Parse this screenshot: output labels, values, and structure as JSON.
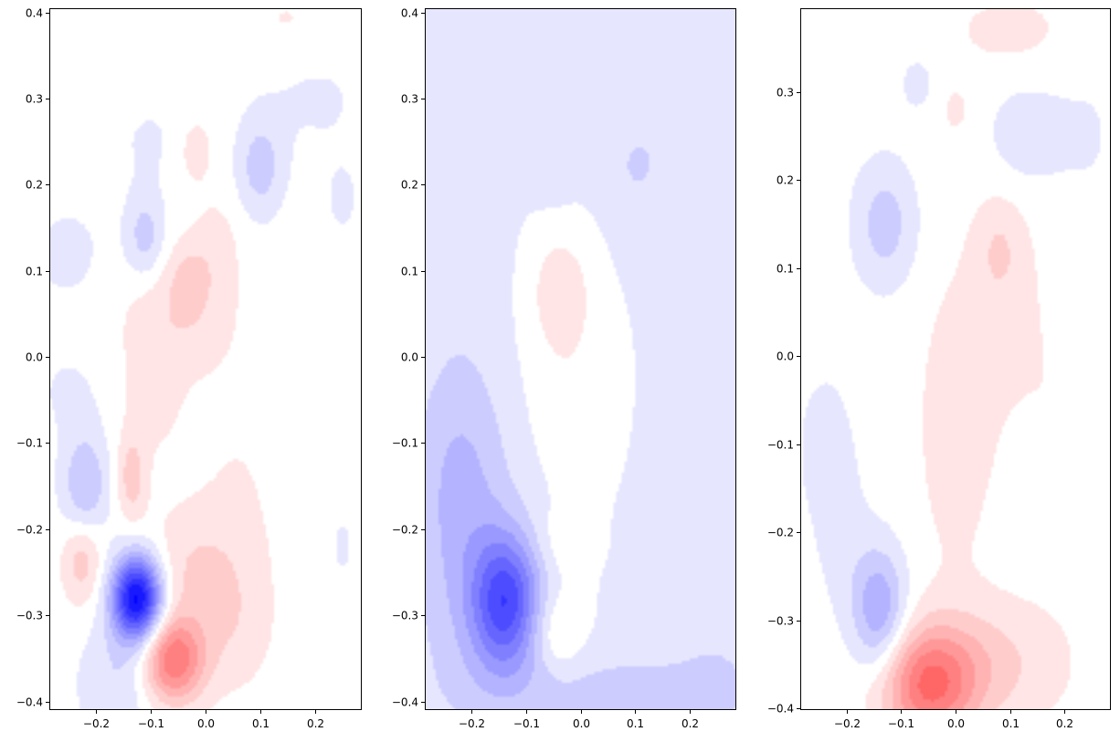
{
  "colors": {
    "positive": "#ff0000",
    "negative": "#0000ff",
    "neutral": "#ffffff",
    "axis": "#000000"
  },
  "chart_data": [
    {
      "type": "heatmap",
      "colormap": "bwr",
      "levels": 21,
      "vmin": -1.0,
      "vmax": 1.0,
      "xlim": [
        -0.285,
        0.285
      ],
      "ylim": [
        -0.41,
        0.405
      ],
      "xticks": [
        -0.2,
        -0.1,
        0.0,
        0.1,
        0.2
      ],
      "yticks": [
        -0.4,
        -0.3,
        -0.2,
        -0.1,
        0.0,
        0.1,
        0.2,
        0.3,
        0.4
      ],
      "xticklabels": [
        "−0.2",
        "−0.1",
        "0.0",
        "0.1",
        "0.2"
      ],
      "yticklabels": [
        "−0.4",
        "−0.3",
        "−0.2",
        "−0.1",
        "0.0",
        "0.1",
        "0.2",
        "0.3",
        "0.4"
      ],
      "background": 0.0,
      "blobs": [
        {
          "x": -0.125,
          "y": -0.28,
          "sx": 0.032,
          "sy": 0.035,
          "v": -1.0
        },
        {
          "x": -0.06,
          "y": -0.352,
          "sx": 0.04,
          "sy": 0.035,
          "v": 0.55
        },
        {
          "x": -0.02,
          "y": -0.25,
          "sx": 0.07,
          "sy": 0.05,
          "v": 0.15
        },
        {
          "x": 0.05,
          "y": -0.32,
          "sx": 0.05,
          "sy": 0.05,
          "v": 0.1
        },
        {
          "x": -0.225,
          "y": -0.235,
          "sx": 0.025,
          "sy": 0.035,
          "v": 0.22
        },
        {
          "x": -0.135,
          "y": -0.14,
          "sx": 0.018,
          "sy": 0.035,
          "v": 0.2
        },
        {
          "x": -0.22,
          "y": -0.15,
          "sx": 0.03,
          "sy": 0.045,
          "v": -0.25
        },
        {
          "x": -0.16,
          "y": -0.38,
          "sx": 0.05,
          "sy": 0.05,
          "v": -0.15
        },
        {
          "x": -0.05,
          "y": 0.05,
          "sx": 0.07,
          "sy": 0.05,
          "v": 0.13
        },
        {
          "x": -0.03,
          "y": 0.09,
          "sx": 0.025,
          "sy": 0.03,
          "v": 0.12
        },
        {
          "x": 0.02,
          "y": 0.13,
          "sx": 0.03,
          "sy": 0.04,
          "v": 0.08
        },
        {
          "x": -0.1,
          "y": -0.05,
          "sx": 0.04,
          "sy": 0.05,
          "v": 0.08
        },
        {
          "x": 0.06,
          "y": -0.15,
          "sx": 0.06,
          "sy": 0.09,
          "v": 0.05
        },
        {
          "x": -0.11,
          "y": 0.14,
          "sx": 0.025,
          "sy": 0.035,
          "v": -0.2
        },
        {
          "x": 0.1,
          "y": 0.22,
          "sx": 0.03,
          "sy": 0.04,
          "v": -0.2
        },
        {
          "x": -0.02,
          "y": 0.24,
          "sx": 0.025,
          "sy": 0.03,
          "v": 0.1
        },
        {
          "x": 0.15,
          "y": 0.39,
          "sx": 0.06,
          "sy": 0.03,
          "v": 0.06
        },
        {
          "x": -0.25,
          "y": 0.12,
          "sx": 0.06,
          "sy": 0.05,
          "v": -0.07
        },
        {
          "x": -0.1,
          "y": 0.25,
          "sx": 0.05,
          "sy": 0.04,
          "v": -0.06
        },
        {
          "x": 0.2,
          "y": 0.3,
          "sx": 0.08,
          "sy": 0.05,
          "v": -0.06
        },
        {
          "x": 0.25,
          "y": 0.18,
          "sx": 0.03,
          "sy": 0.04,
          "v": -0.06
        },
        {
          "x": 0.25,
          "y": -0.22,
          "sx": 0.02,
          "sy": 0.04,
          "v": -0.06
        },
        {
          "x": -0.25,
          "y": -0.04,
          "sx": 0.05,
          "sy": 0.04,
          "v": -0.06
        }
      ]
    },
    {
      "type": "heatmap",
      "colormap": "bwr",
      "levels": 21,
      "vmin": -1.0,
      "vmax": 1.0,
      "xlim": [
        -0.285,
        0.285
      ],
      "ylim": [
        -0.41,
        0.405
      ],
      "xticks": [
        -0.2,
        -0.1,
        0.0,
        0.1,
        0.2
      ],
      "yticks": [
        -0.4,
        -0.3,
        -0.2,
        -0.1,
        0.0,
        0.1,
        0.2,
        0.3,
        0.4
      ],
      "xticklabels": [
        "−0.2",
        "−0.1",
        "0.0",
        "0.1",
        "0.2"
      ],
      "yticklabels": [
        "−0.4",
        "−0.3",
        "−0.2",
        "−0.1",
        "0.0",
        "0.1",
        "0.2",
        "0.3",
        "0.4"
      ],
      "background": -0.06,
      "blobs": [
        {
          "x": -0.135,
          "y": -0.285,
          "sx": 0.045,
          "sy": 0.055,
          "v": -0.6
        },
        {
          "x": -0.22,
          "y": -0.14,
          "sx": 0.06,
          "sy": 0.1,
          "v": -0.2
        },
        {
          "x": -0.2,
          "y": -0.3,
          "sx": 0.08,
          "sy": 0.1,
          "v": -0.1
        },
        {
          "x": 0.1,
          "y": -0.39,
          "sx": 0.2,
          "sy": 0.04,
          "v": -0.12
        },
        {
          "x": 0.25,
          "y": -0.28,
          "sx": 0.05,
          "sy": 0.1,
          "v": -0.05
        },
        {
          "x": -0.05,
          "y": -0.31,
          "sx": 0.04,
          "sy": 0.03,
          "v": 0.14
        },
        {
          "x": -0.04,
          "y": -0.34,
          "sx": 0.03,
          "sy": 0.02,
          "v": 0.06
        },
        {
          "x": -0.04,
          "y": 0.08,
          "sx": 0.04,
          "sy": 0.05,
          "v": 0.12
        },
        {
          "x": -0.02,
          "y": 0.0,
          "sx": 0.06,
          "sy": 0.11,
          "v": 0.08
        },
        {
          "x": -0.04,
          "y": -0.22,
          "sx": 0.04,
          "sy": 0.03,
          "v": 0.08
        },
        {
          "x": 0.15,
          "y": 0.25,
          "sx": 0.09,
          "sy": 0.09,
          "v": -0.08
        },
        {
          "x": 0.1,
          "y": 0.22,
          "sx": 0.02,
          "sy": 0.02,
          "v": -0.04
        },
        {
          "x": -0.22,
          "y": 0.12,
          "sx": 0.06,
          "sy": 0.08,
          "v": -0.05
        },
        {
          "x": -0.05,
          "y": 0.22,
          "sx": 0.03,
          "sy": 0.04,
          "v": -0.05
        }
      ]
    },
    {
      "type": "heatmap",
      "colormap": "bwr",
      "levels": 21,
      "vmin": -1.0,
      "vmax": 1.0,
      "xlim": [
        -0.285,
        0.285
      ],
      "ylim": [
        -0.402,
        0.395
      ],
      "xticks": [
        -0.2,
        -0.1,
        0.0,
        0.1,
        0.2
      ],
      "yticks": [
        -0.4,
        -0.3,
        -0.2,
        -0.1,
        0.0,
        0.1,
        0.2,
        0.3
      ],
      "xticklabels": [
        "−0.2",
        "−0.1",
        "0.0",
        "0.1",
        "0.2"
      ],
      "yticklabels": [
        "−0.4",
        "−0.3",
        "−0.2",
        "−0.1",
        "0.0",
        "0.1",
        "0.2",
        "0.3"
      ],
      "background": 0.0,
      "blobs": [
        {
          "x": -0.05,
          "y": -0.375,
          "sx": 0.06,
          "sy": 0.045,
          "v": 0.5
        },
        {
          "x": 0.05,
          "y": -0.35,
          "sx": 0.1,
          "sy": 0.05,
          "v": 0.18
        },
        {
          "x": -0.14,
          "y": -0.29,
          "sx": 0.035,
          "sy": 0.05,
          "v": -0.35
        },
        {
          "x": -0.21,
          "y": -0.2,
          "sx": 0.04,
          "sy": 0.07,
          "v": -0.08
        },
        {
          "x": -0.24,
          "y": -0.1,
          "sx": 0.03,
          "sy": 0.05,
          "v": -0.12
        },
        {
          "x": 0.0,
          "y": -0.08,
          "sx": 0.05,
          "sy": 0.12,
          "v": 0.1
        },
        {
          "x": 0.08,
          "y": 0.12,
          "sx": 0.03,
          "sy": 0.04,
          "v": 0.12
        },
        {
          "x": 0.1,
          "y": 0.05,
          "sx": 0.06,
          "sy": 0.1,
          "v": 0.06
        },
        {
          "x": -0.13,
          "y": 0.15,
          "sx": 0.04,
          "sy": 0.05,
          "v": -0.2
        },
        {
          "x": 0.13,
          "y": 0.25,
          "sx": 0.05,
          "sy": 0.04,
          "v": -0.12
        },
        {
          "x": 0.0,
          "y": 0.28,
          "sx": 0.02,
          "sy": 0.02,
          "v": 0.08
        },
        {
          "x": -0.07,
          "y": 0.31,
          "sx": 0.03,
          "sy": 0.03,
          "v": -0.07
        },
        {
          "x": 0.1,
          "y": 0.37,
          "sx": 0.08,
          "sy": 0.03,
          "v": 0.08
        },
        {
          "x": 0.25,
          "y": 0.25,
          "sx": 0.05,
          "sy": 0.08,
          "v": -0.05
        },
        {
          "x": 0.2,
          "y": -0.1,
          "sx": 0.05,
          "sy": 0.1,
          "v": 0.04
        }
      ]
    }
  ]
}
